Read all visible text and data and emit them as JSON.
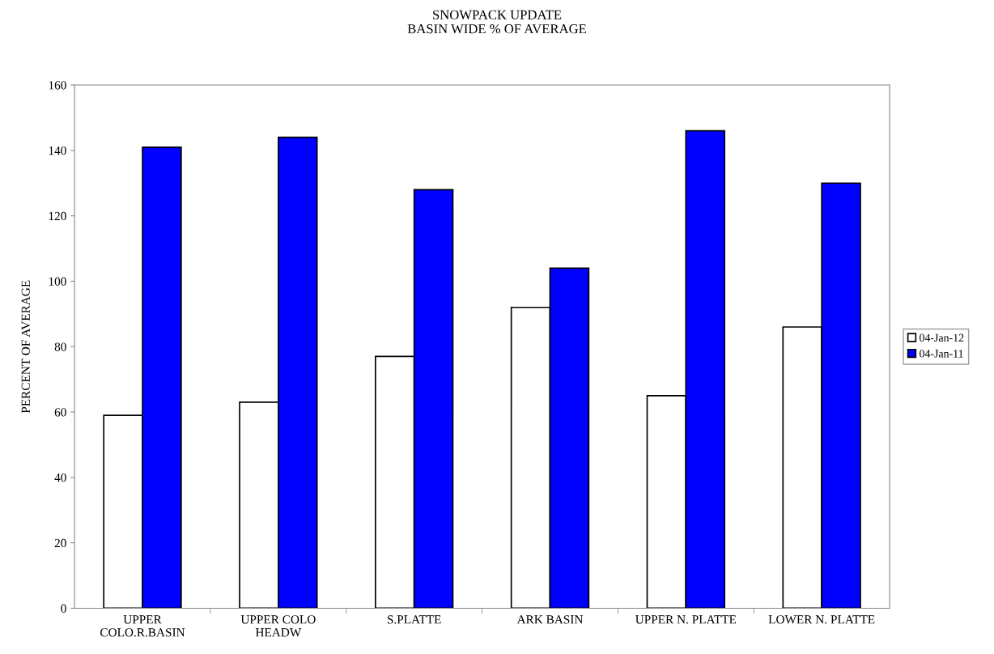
{
  "chart_data": {
    "type": "bar",
    "title": "SNOWPACK UPDATE\nBASIN WIDE % OF AVERAGE",
    "ylabel": "PERCENT OF AVERAGE",
    "categories": [
      "UPPER\nCOLO.R.BASIN",
      "UPPER COLO\nHEADW",
      "S.PLATTE",
      "ARK BASIN",
      "UPPER N. PLATTE",
      "LOWER N. PLATTE"
    ],
    "series": [
      {
        "name": "04-Jan-12",
        "color": "#ffffff",
        "values": [
          59,
          63,
          77,
          92,
          65,
          86
        ]
      },
      {
        "name": "04-Jan-11",
        "color": "#0000ff",
        "values": [
          141,
          144,
          128,
          104,
          146,
          130
        ]
      }
    ],
    "ylim": [
      0,
      160
    ],
    "yticks": [
      0,
      20,
      40,
      60,
      80,
      100,
      120,
      140,
      160
    ],
    "grid": false,
    "legend": "right"
  }
}
